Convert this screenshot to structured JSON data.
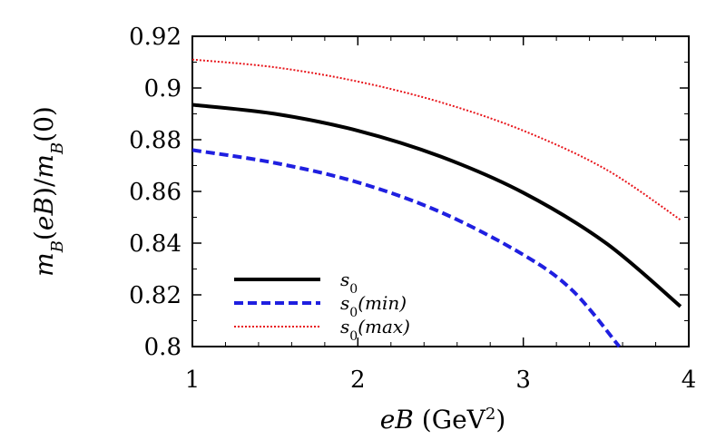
{
  "chart_data": {
    "type": "line",
    "xlabel": "eB (GeV²)",
    "ylabel": "m_B(eB)/m_B(0)",
    "xlim": [
      1,
      4
    ],
    "ylim": [
      0.8,
      0.92
    ],
    "x_ticks": [
      "1",
      "2",
      "3",
      "4"
    ],
    "y_ticks": [
      "0.8",
      "0.82",
      "0.84",
      "0.86",
      "0.88",
      "0.9",
      "0.92"
    ],
    "legend_position": "bottom-left",
    "grid": false,
    "series": [
      {
        "name": "s0",
        "color": "#000000",
        "style": "solid",
        "x": [
          1.0,
          1.5,
          2.0,
          2.5,
          3.0,
          3.5,
          3.95
        ],
        "y": [
          0.8935,
          0.89,
          0.8835,
          0.8735,
          0.8595,
          0.84,
          0.8155
        ]
      },
      {
        "name": "s0(min)",
        "color": "#1f1fe0",
        "style": "dashed",
        "x": [
          1.0,
          1.5,
          2.0,
          2.5,
          3.0,
          3.3,
          3.58
        ],
        "y": [
          0.876,
          0.871,
          0.8635,
          0.852,
          0.8355,
          0.8215,
          0.8
        ]
      },
      {
        "name": "s0(max)",
        "color": "#e8161c",
        "style": "dotted",
        "x": [
          1.0,
          1.5,
          2.0,
          2.5,
          3.0,
          3.5,
          3.95
        ],
        "y": [
          0.911,
          0.908,
          0.9025,
          0.8945,
          0.8835,
          0.8685,
          0.849
        ]
      }
    ]
  },
  "labels": {
    "legend": [
      {
        "base": "s",
        "sub": "0",
        "suffix": ""
      },
      {
        "base": "s",
        "sub": "0",
        "suffix": "(min)"
      },
      {
        "base": "s",
        "sub": "0",
        "suffix": "(max)"
      }
    ]
  }
}
